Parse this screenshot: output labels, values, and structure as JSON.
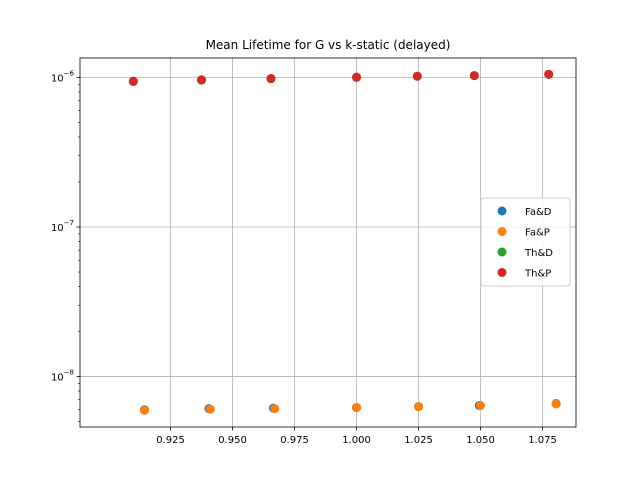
{
  "chart_data": {
    "type": "scatter",
    "title": "Mean Lifetime for G vs k-static (delayed)",
    "xlabel": "",
    "ylabel": "",
    "xlim": [
      0.8885,
      1.0885
    ],
    "ylim": [
      4.6e-09,
      1.35e-06
    ],
    "yscale": "log",
    "grid": true,
    "legend_position": "center-right",
    "x_ticks": [
      {
        "value": 0.925,
        "label": "0.925"
      },
      {
        "value": 0.95,
        "label": "0.950"
      },
      {
        "value": 0.975,
        "label": "0.975"
      },
      {
        "value": 1.0,
        "label": "1.000"
      },
      {
        "value": 1.025,
        "label": "1.025"
      },
      {
        "value": 1.05,
        "label": "1.050"
      },
      {
        "value": 1.075,
        "label": "1.075"
      }
    ],
    "y_ticks": [
      {
        "value": 1e-08,
        "base": "10",
        "exp": "−8"
      },
      {
        "value": 1e-07,
        "base": "10",
        "exp": "−7"
      },
      {
        "value": 1e-06,
        "base": "10",
        "exp": "−6"
      }
    ],
    "series": [
      {
        "name": "Fa&D",
        "color": "#1f77b4",
        "x": [
          0.9145,
          0.9405,
          0.9665,
          1.0,
          1.025,
          1.0495,
          1.0805
        ],
        "y": [
          6e-09,
          6.1e-09,
          6.15e-09,
          6.2e-09,
          6.3e-09,
          6.4e-09,
          6.6e-09
        ]
      },
      {
        "name": "Fa&P",
        "color": "#ff7f0e",
        "x": [
          0.9145,
          0.941,
          0.967,
          1.0,
          1.025,
          1.05,
          1.0805
        ],
        "y": [
          5.95e-09,
          6.05e-09,
          6.1e-09,
          6.2e-09,
          6.3e-09,
          6.4e-09,
          6.55e-09
        ]
      },
      {
        "name": "Th&D",
        "color": "#2ca02c",
        "x": [
          0.91,
          0.9375,
          0.9655,
          1.0,
          1.0245,
          1.0475,
          1.0775
        ],
        "y": [
          9.4e-07,
          9.6e-07,
          9.8e-07,
          1e-06,
          1.02e-06,
          1.03e-06,
          1.05e-06
        ]
      },
      {
        "name": "Th&P",
        "color": "#d62728",
        "x": [
          0.91,
          0.9375,
          0.9655,
          1.0,
          1.0245,
          1.0475,
          1.0775
        ],
        "y": [
          9.45e-07,
          9.65e-07,
          9.85e-07,
          1.005e-06,
          1.02e-06,
          1.03e-06,
          1.05e-06
        ]
      }
    ]
  }
}
